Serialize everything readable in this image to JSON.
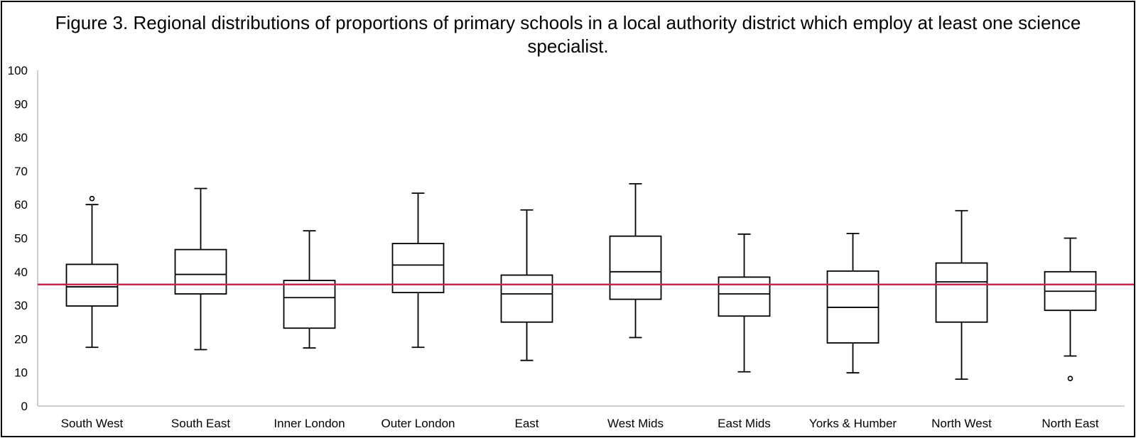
{
  "colors": {
    "box_stroke": "#000000",
    "axis": "#bfbfbf",
    "reference_line": "#c8254f",
    "background": "#ffffff"
  },
  "chart_data": {
    "type": "boxplot",
    "title": "Figure 3. Regional distributions of proportions of primary schools in a local authority district which employ at least one science specialist.",
    "xlabel": "",
    "ylabel": "",
    "ylim": [
      0,
      100
    ],
    "yticks": [
      0,
      10,
      20,
      30,
      40,
      50,
      60,
      70,
      80,
      90,
      100
    ],
    "grid": false,
    "legend": "none",
    "reference_line": 36.2,
    "categories": [
      "South West",
      "South East",
      "Inner London",
      "Outer London",
      "East",
      "West Mids",
      "East Mids",
      "Yorks & Humber",
      "North West",
      "North East"
    ],
    "boxes": [
      {
        "category": "South West",
        "min": 17.5,
        "q1": 29.8,
        "median": 35.5,
        "q3": 42.2,
        "max": 60.0,
        "outliers": [
          61.8
        ]
      },
      {
        "category": "South East",
        "min": 16.8,
        "q1": 33.4,
        "median": 39.2,
        "q3": 46.6,
        "max": 64.8,
        "outliers": []
      },
      {
        "category": "Inner London",
        "min": 17.3,
        "q1": 23.2,
        "median": 32.3,
        "q3": 37.4,
        "max": 52.2,
        "outliers": []
      },
      {
        "category": "Outer London",
        "min": 17.5,
        "q1": 33.8,
        "median": 42.0,
        "q3": 48.4,
        "max": 63.4,
        "outliers": []
      },
      {
        "category": "East",
        "min": 13.6,
        "q1": 25.0,
        "median": 33.4,
        "q3": 39.0,
        "max": 58.4,
        "outliers": []
      },
      {
        "category": "West Mids",
        "min": 20.4,
        "q1": 31.8,
        "median": 40.0,
        "q3": 50.6,
        "max": 66.2,
        "outliers": []
      },
      {
        "category": "East Mids",
        "min": 10.2,
        "q1": 26.8,
        "median": 33.4,
        "q3": 38.4,
        "max": 51.2,
        "outliers": []
      },
      {
        "category": "Yorks & Humber",
        "min": 9.9,
        "q1": 18.8,
        "median": 29.4,
        "q3": 40.2,
        "max": 51.4,
        "outliers": []
      },
      {
        "category": "North West",
        "min": 8.0,
        "q1": 25.0,
        "median": 37.0,
        "q3": 42.6,
        "max": 58.2,
        "outliers": []
      },
      {
        "category": "North East",
        "min": 14.9,
        "q1": 28.5,
        "median": 34.2,
        "q3": 40.0,
        "max": 50.0,
        "outliers": [
          8.2
        ]
      }
    ]
  }
}
